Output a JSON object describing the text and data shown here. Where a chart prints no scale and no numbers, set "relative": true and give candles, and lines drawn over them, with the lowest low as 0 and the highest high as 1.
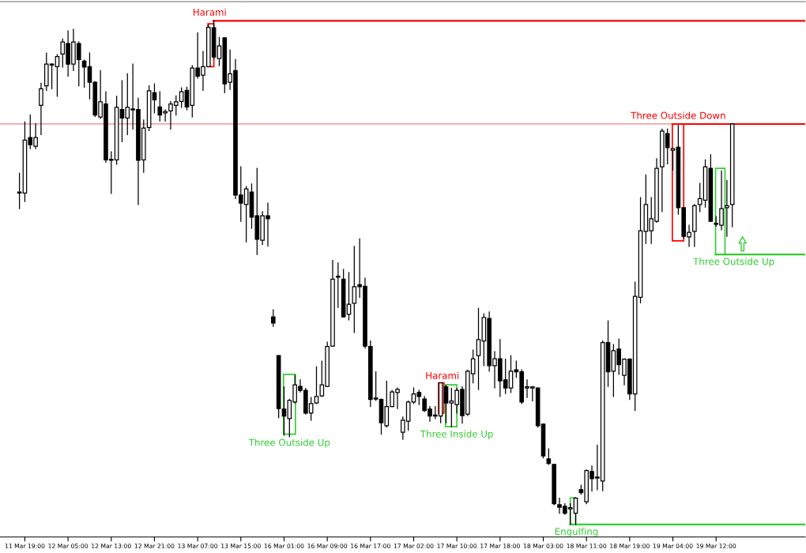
{
  "chart_data": {
    "type": "candlestick",
    "relative": true,
    "grid": false,
    "legend": false,
    "categories": [
      null,
      "11 Mar 19:00",
      null,
      null,
      null,
      null,
      null,
      null,
      null,
      "12 Mar 05:00",
      null,
      null,
      null,
      null,
      null,
      null,
      null,
      "12 Mar 13:00",
      null,
      null,
      null,
      null,
      null,
      null,
      null,
      "12 Mar 21:00",
      null,
      null,
      null,
      null,
      null,
      null,
      null,
      "13 Mar 07:00",
      null,
      null,
      null,
      null,
      null,
      null,
      null,
      "13 Mar 15:00",
      null,
      null,
      null,
      null,
      null,
      null,
      null,
      "16 Mar 01:00",
      null,
      null,
      null,
      null,
      null,
      null,
      null,
      "16 Mar 09:00",
      null,
      null,
      null,
      null,
      null,
      null,
      null,
      "16 Mar 17:00",
      null,
      null,
      null,
      null,
      null,
      null,
      null,
      "17 Mar 02:00",
      null,
      null,
      null,
      null,
      null,
      null,
      null,
      "17 Mar 10:00",
      null,
      null,
      null,
      null,
      null,
      null,
      null,
      "17 Mar 18:00",
      null,
      null,
      null,
      null,
      null,
      null,
      null,
      "18 Mar 03:00",
      null,
      null,
      null,
      null,
      null,
      null,
      null,
      "18 Mar 11:00",
      null,
      null,
      null,
      null,
      null,
      null,
      null,
      "18 Mar 19:00",
      null,
      null,
      null,
      null,
      null,
      null,
      null,
      "19 Mar 04:00",
      null,
      null,
      null,
      null,
      null,
      null,
      null,
      "19 Mar 12:00",
      null,
      null,
      null
    ],
    "ohlc": [
      [
        0.658,
        0.697,
        0.627,
        0.66
      ],
      [
        0.658,
        0.799,
        0.641,
        0.763
      ],
      [
        0.768,
        0.813,
        0.746,
        0.754
      ],
      [
        0.751,
        0.796,
        0.746,
        0.768
      ],
      [
        0.832,
        0.876,
        0.774,
        0.865
      ],
      [
        0.871,
        0.936,
        0.862,
        0.914
      ],
      [
        0.912,
        0.915,
        0.865,
        0.914
      ],
      [
        0.909,
        0.933,
        0.85,
        0.929
      ],
      [
        0.934,
        0.964,
        0.908,
        0.958
      ],
      [
        0.955,
        0.98,
        0.89,
        0.914
      ],
      [
        0.914,
        0.983,
        0.901,
        0.958
      ],
      [
        0.955,
        0.958,
        0.871,
        0.923
      ],
      [
        0.92,
        0.922,
        0.868,
        0.908
      ],
      [
        0.909,
        0.936,
        0.845,
        0.878
      ],
      [
        0.878,
        0.879,
        0.81,
        0.813
      ],
      [
        0.809,
        0.901,
        0.806,
        0.839
      ],
      [
        0.835,
        0.859,
        0.719,
        0.724
      ],
      [
        0.723,
        0.74,
        0.657,
        0.723
      ],
      [
        0.724,
        0.85,
        0.715,
        0.828
      ],
      [
        0.824,
        0.881,
        0.76,
        0.807
      ],
      [
        0.807,
        0.895,
        0.774,
        0.828
      ],
      [
        0.823,
        0.914,
        0.785,
        0.823
      ],
      [
        0.824,
        0.846,
        0.635,
        0.723
      ],
      [
        0.724,
        0.803,
        0.699,
        0.787
      ],
      [
        0.788,
        0.871,
        0.782,
        0.861
      ],
      [
        0.857,
        0.875,
        0.817,
        0.843
      ],
      [
        0.829,
        0.859,
        0.801,
        0.813
      ],
      [
        0.817,
        0.823,
        0.801,
        0.82
      ],
      [
        0.821,
        0.84,
        0.785,
        0.835
      ],
      [
        0.832,
        0.851,
        0.813,
        0.839
      ],
      [
        0.84,
        0.867,
        0.828,
        0.859
      ],
      [
        0.862,
        0.868,
        0.823,
        0.829
      ],
      [
        0.832,
        0.911,
        0.809,
        0.906
      ],
      [
        0.906,
        0.976,
        0.886,
        0.89
      ],
      [
        0.892,
        0.939,
        0.862,
        0.909
      ],
      [
        0.909,
        0.992,
        0.909,
        0.987
      ],
      [
        0.986,
        1,
        0.925,
        0.928
      ],
      [
        0.925,
        0.967,
        0.911,
        0.95
      ],
      [
        0.966,
        0.966,
        0.857,
        0.875
      ],
      [
        0.878,
        0.942,
        0.864,
        0.895
      ],
      [
        0.901,
        0.923,
        0.647,
        0.654
      ],
      [
        0.654,
        0.71,
        0.602,
        0.638
      ],
      [
        0.635,
        0.671,
        0.561,
        0.666
      ],
      [
        0.66,
        0.676,
        0.588,
        0.61
      ],
      [
        0.613,
        0.707,
        0.536,
        0.566
      ],
      [
        0.564,
        0.621,
        0.556,
        0.613
      ],
      [
        0.613,
        0.638,
        0.553,
        0.607
      ],
      [
        0.412,
        0.426,
        0.393,
        0.4
      ],
      [
        0.335,
        0.335,
        0.212,
        0.23
      ],
      [
        0.229,
        0.273,
        0.177,
        0.215
      ],
      [
        0.21,
        0.248,
        0.174,
        0.246
      ],
      [
        0.243,
        0.296,
        0.241,
        0.277
      ],
      [
        0.274,
        0.287,
        0.263,
        0.266
      ],
      [
        0.266,
        0.27,
        0.219,
        0.221
      ],
      [
        0.221,
        0.252,
        0.207,
        0.24
      ],
      [
        0.241,
        0.313,
        0.24,
        0.254
      ],
      [
        0.255,
        0.324,
        0.254,
        0.277
      ],
      [
        0.274,
        0.362,
        0.274,
        0.353
      ],
      [
        0.354,
        0.524,
        0.354,
        0.487
      ],
      [
        0.491,
        0.519,
        0.431,
        0.491
      ],
      [
        0.487,
        0.506,
        0.412,
        0.412
      ],
      [
        0.417,
        0.5,
        0.406,
        0.437
      ],
      [
        0.439,
        0.552,
        0.381,
        0.472
      ],
      [
        0.476,
        0.567,
        0.451,
        0.472
      ],
      [
        0.473,
        0.489,
        0.35,
        0.354
      ],
      [
        0.353,
        0.364,
        0.234,
        0.248
      ],
      [
        0.249,
        0.303,
        0.246,
        0.249
      ],
      [
        0.248,
        0.249,
        0.179,
        0.202
      ],
      [
        0.196,
        0.284,
        0.193,
        0.234
      ],
      [
        0.234,
        0.266,
        0.234,
        0.263
      ],
      [
        0.262,
        0.271,
        0.23,
        0.268
      ],
      [
        0.183,
        0.213,
        0.169,
        0.207
      ],
      [
        0.205,
        0.245,
        0.187,
        0.243
      ],
      [
        0.243,
        0.271,
        0.24,
        0.259
      ],
      [
        0.262,
        0.266,
        0.238,
        0.254
      ],
      [
        0.249,
        0.254,
        0.224,
        0.226
      ],
      [
        0.229,
        0.234,
        0.205,
        0.215
      ],
      [
        0.215,
        0.234,
        0.21,
        0.215
      ],
      [
        0.215,
        0.281,
        0.202,
        0.281
      ],
      [
        0.273,
        0.276,
        0.202,
        0.241
      ],
      [
        0.241,
        0.27,
        0.194,
        0.245
      ],
      [
        0.238,
        0.27,
        0.221,
        0.266
      ],
      [
        0.268,
        0.273,
        0.201,
        0.216
      ],
      [
        0.219,
        0.306,
        0.216,
        0.304
      ],
      [
        0.299,
        0.346,
        0.281,
        0.329
      ],
      [
        0.335,
        0.429,
        0.268,
        0.367
      ],
      [
        0.364,
        0.418,
        0.315,
        0.411
      ],
      [
        0.409,
        0.422,
        0.304,
        0.315
      ],
      [
        0.315,
        0.343,
        0.271,
        0.329
      ],
      [
        0.329,
        0.367,
        0.254,
        0.285
      ],
      [
        0.287,
        0.328,
        0.26,
        0.271
      ],
      [
        0.271,
        0.335,
        0.262,
        0.304
      ],
      [
        0.307,
        0.324,
        0.292,
        0.303
      ],
      [
        0.303,
        0.307,
        0.24,
        0.243
      ],
      [
        0.271,
        0.287,
        0.252,
        0.271
      ],
      [
        0.271,
        0.271,
        0.245,
        0.271
      ],
      [
        0.271,
        0.271,
        0.193,
        0.196
      ],
      [
        0.199,
        0.199,
        0.132,
        0.136
      ],
      [
        0.13,
        0.15,
        0.119,
        0.121
      ],
      [
        0.119,
        0.119,
        0.039,
        0.041
      ],
      [
        0.039,
        0.052,
        0.022,
        0.034
      ],
      [
        0.036,
        0.041,
        0.02,
        0.022
      ],
      [
        0.031,
        0.041,
        0,
        0.031
      ],
      [
        0.022,
        0.053,
        0,
        0.052
      ],
      [
        0.069,
        0.078,
        0.06,
        0.063
      ],
      [
        0.045,
        0.108,
        0.041,
        0.107
      ],
      [
        0.105,
        0.116,
        0.066,
        0.091
      ],
      [
        0.092,
        0.157,
        0.069,
        0.092
      ],
      [
        0.086,
        0.364,
        0.067,
        0.361
      ],
      [
        0.361,
        0.404,
        0.274,
        0.303
      ],
      [
        0.304,
        0.357,
        0.254,
        0.345
      ],
      [
        0.348,
        0.368,
        0.298,
        0.317
      ],
      [
        0.296,
        0.329,
        0.277,
        0.328
      ],
      [
        0.328,
        0.329,
        0.248,
        0.259
      ],
      [
        0.259,
        0.481,
        0.226,
        0.453
      ],
      [
        0.451,
        0.649,
        0.44,
        0.583
      ],
      [
        0.582,
        0.694,
        0.558,
        0.635
      ],
      [
        0.583,
        0.649,
        0.558,
        0.607
      ],
      [
        0.602,
        0.726,
        0.6,
        0.707
      ],
      [
        0.71,
        0.785,
        0.621,
        0.781
      ],
      [
        0.776,
        0.785,
        0.716,
        0.748
      ],
      [
        0.743,
        0.746,
        0.704,
        0.746
      ],
      [
        0.749,
        0.792,
        0.616,
        0.629
      ],
      [
        0.629,
        0.629,
        0.569,
        0.572
      ],
      [
        0.571,
        0.594,
        0.552,
        0.58
      ],
      [
        0.582,
        0.635,
        0.552,
        0.633
      ],
      [
        0.635,
        0.677,
        0.621,
        0.647
      ],
      [
        0.644,
        0.724,
        0.63,
        0.71
      ],
      [
        0.707,
        0.734,
        0.602,
        0.602
      ],
      [
        0.596,
        0.611,
        0.592,
        0.596
      ],
      [
        0.594,
        0.702,
        0.585,
        0.627
      ],
      [
        0.629,
        0.683,
        0.572,
        0.633
      ],
      [
        0.635,
        0.796,
        0.591,
        0.795
      ]
    ],
    "ref_lines": [
      {
        "axis": "y",
        "value": 0.795,
        "label": null,
        "color": "#f08080"
      },
      {
        "axis": "y",
        "value": 1,
        "label": "Harami",
        "color": "#ff0000"
      },
      {
        "axis": "y",
        "value": 0.795,
        "label": "Three Outside Down",
        "color": "#ff0000"
      },
      {
        "axis": "y",
        "value": 0.536,
        "label": "Three Outside Up",
        "color": "#32cd32"
      },
      {
        "axis": "y",
        "value": 0,
        "label": "Engulfing",
        "color": "#32cd32"
      }
    ],
    "annotations": [
      "Three Outside Up",
      "Harami",
      "Three Inside Up"
    ]
  }
}
